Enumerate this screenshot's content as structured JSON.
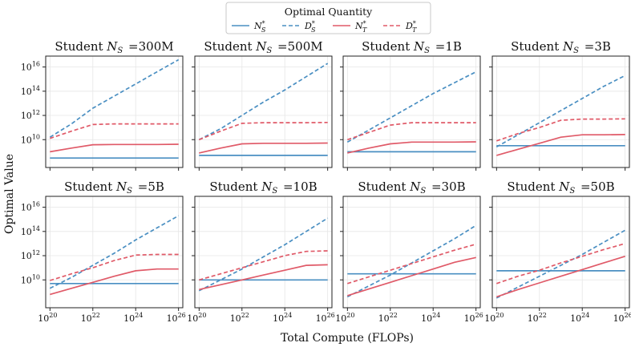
{
  "figure": {
    "legend_title": "Optimal Quantity",
    "ylabel": "Optimal Value",
    "xlabel": "Total Compute (FLOPs)"
  },
  "chart_data": {
    "type": "line",
    "x_scale": "log",
    "y_scale": "log",
    "x_range": [
      1e+20,
      1e+26
    ],
    "y_range": [
      30000000.0,
      1e+17
    ],
    "x_ticks": [
      "10^20",
      "10^22",
      "10^24",
      "10^26"
    ],
    "y_ticks": [
      "10^10",
      "10^12",
      "10^14",
      "10^16"
    ],
    "grid": true,
    "legend_position": "top-center",
    "series_styles": [
      {
        "name": "N_S^*",
        "color": "#4a8fc2",
        "dash": "solid"
      },
      {
        "name": "D_S^*",
        "color": "#4a8fc2",
        "dash": "dashed"
      },
      {
        "name": "N_T^*",
        "color": "#e05a68",
        "dash": "solid"
      },
      {
        "name": "D_T^*",
        "color": "#e05a68",
        "dash": "dashed"
      }
    ],
    "panels": [
      {
        "title_prefix": "Student",
        "title_value": "=300M",
        "x": [
          20,
          21,
          22,
          23,
          24,
          25,
          26
        ],
        "series": [
          {
            "name": "N_S^*",
            "log10_values": [
              8.48,
              8.48,
              8.48,
              8.48,
              8.48,
              8.48,
              8.48
            ]
          },
          {
            "name": "D_S^*",
            "log10_values": [
              10.2,
              11.3,
              12.6,
              13.6,
              14.6,
              15.6,
              16.6
            ]
          },
          {
            "name": "N_T^*",
            "log10_values": [
              9.0,
              9.3,
              9.58,
              9.6,
              9.6,
              9.6,
              9.62
            ]
          },
          {
            "name": "D_T^*",
            "log10_values": [
              10.1,
              10.7,
              11.25,
              11.3,
              11.3,
              11.3,
              11.3
            ]
          }
        ]
      },
      {
        "title_prefix": "Student",
        "title_value": "=500M",
        "x": [
          20,
          21,
          22,
          23,
          24,
          25,
          26
        ],
        "series": [
          {
            "name": "N_S^*",
            "log10_values": [
              8.7,
              8.7,
              8.7,
              8.7,
              8.7,
              8.7,
              8.7
            ]
          },
          {
            "name": "D_S^*",
            "log10_values": [
              10.0,
              10.9,
              12.0,
              13.1,
              14.1,
              15.2,
              16.3
            ]
          },
          {
            "name": "N_T^*",
            "log10_values": [
              8.9,
              9.3,
              9.65,
              9.7,
              9.7,
              9.7,
              9.72
            ]
          },
          {
            "name": "D_T^*",
            "log10_values": [
              10.0,
              10.7,
              11.35,
              11.4,
              11.4,
              11.4,
              11.42
            ]
          }
        ]
      },
      {
        "title_prefix": "Student",
        "title_value": "=1B",
        "x": [
          20,
          21,
          22,
          23,
          24,
          25,
          26
        ],
        "series": [
          {
            "name": "N_S^*",
            "log10_values": [
              9.0,
              9.0,
              9.0,
              9.0,
              9.0,
              9.0,
              9.0
            ]
          },
          {
            "name": "D_S^*",
            "log10_values": [
              9.8,
              10.8,
              11.8,
              12.8,
              13.8,
              14.7,
              15.6
            ]
          },
          {
            "name": "N_T^*",
            "log10_values": [
              8.9,
              9.3,
              9.65,
              9.8,
              9.8,
              9.8,
              9.82
            ]
          },
          {
            "name": "D_T^*",
            "log10_values": [
              10.0,
              10.6,
              11.2,
              11.4,
              11.4,
              11.4,
              11.4
            ]
          }
        ]
      },
      {
        "title_prefix": "Student",
        "title_value": "=3B",
        "x": [
          20,
          21,
          22,
          23,
          24,
          25,
          26
        ],
        "series": [
          {
            "name": "N_S^*",
            "log10_values": [
              9.5,
              9.5,
              9.5,
              9.5,
              9.5,
              9.5,
              9.5
            ]
          },
          {
            "name": "D_S^*",
            "log10_values": [
              9.4,
              10.4,
              11.4,
              12.4,
              13.4,
              14.4,
              15.3
            ]
          },
          {
            "name": "N_T^*",
            "log10_values": [
              8.7,
              9.2,
              9.7,
              10.2,
              10.4,
              10.4,
              10.42
            ]
          },
          {
            "name": "D_T^*",
            "log10_values": [
              9.9,
              10.5,
              11.0,
              11.6,
              11.7,
              11.7,
              11.72
            ]
          }
        ]
      },
      {
        "title_prefix": "Student",
        "title_value": "=5B",
        "x": [
          20,
          21,
          22,
          23,
          24,
          25,
          26
        ],
        "series": [
          {
            "name": "N_S^*",
            "log10_values": [
              9.7,
              9.7,
              9.7,
              9.7,
              9.7,
              9.7,
              9.7
            ]
          },
          {
            "name": "D_S^*",
            "log10_values": [
              9.3,
              10.2,
              11.2,
              12.2,
              13.3,
              14.3,
              15.3
            ]
          },
          {
            "name": "N_T^*",
            "log10_values": [
              8.8,
              9.3,
              9.8,
              10.3,
              10.75,
              10.9,
              10.9
            ]
          },
          {
            "name": "D_T^*",
            "log10_values": [
              9.95,
              10.5,
              11.0,
              11.6,
              12.05,
              12.1,
              12.1
            ]
          }
        ]
      },
      {
        "title_prefix": "Student",
        "title_value": "=10B",
        "x": [
          20,
          21,
          22,
          23,
          24,
          25,
          26
        ],
        "series": [
          {
            "name": "N_S^*",
            "log10_values": [
              10.0,
              10.0,
              10.0,
              10.0,
              10.0,
              10.0,
              10.0
            ]
          },
          {
            "name": "D_S^*",
            "log10_values": [
              9.1,
              10.0,
              10.9,
              11.9,
              12.9,
              14.0,
              15.1
            ]
          },
          {
            "name": "N_T^*",
            "log10_values": [
              9.2,
              9.6,
              10.0,
              10.4,
              10.8,
              11.2,
              11.25
            ]
          },
          {
            "name": "D_T^*",
            "log10_values": [
              10.0,
              10.5,
              11.0,
              11.5,
              12.0,
              12.35,
              12.4
            ]
          }
        ]
      },
      {
        "title_prefix": "Student",
        "title_value": "=30B",
        "x": [
          20,
          21,
          22,
          23,
          24,
          25,
          26
        ],
        "series": [
          {
            "name": "N_S^*",
            "log10_values": [
              10.5,
              10.5,
              10.5,
              10.5,
              10.5,
              10.5,
              10.5
            ]
          },
          {
            "name": "D_S^*",
            "log10_values": [
              8.6,
              9.5,
              10.4,
              11.4,
              12.4,
              13.4,
              14.5
            ]
          },
          {
            "name": "N_T^*",
            "log10_values": [
              8.7,
              9.25,
              9.8,
              10.35,
              10.9,
              11.45,
              11.85
            ]
          },
          {
            "name": "D_T^*",
            "log10_values": [
              9.7,
              10.25,
              10.8,
              11.35,
              11.9,
              12.45,
              12.95
            ]
          }
        ]
      },
      {
        "title_prefix": "Student",
        "title_value": "=50B",
        "x": [
          20,
          21,
          22,
          23,
          24,
          25,
          26
        ],
        "series": [
          {
            "name": "N_S^*",
            "log10_values": [
              10.75,
              10.75,
              10.75,
              10.75,
              10.75,
              10.75,
              10.75
            ]
          },
          {
            "name": "D_S^*",
            "log10_values": [
              8.5,
              9.4,
              10.3,
              11.2,
              12.1,
              13.1,
              14.1
            ]
          },
          {
            "name": "N_T^*",
            "log10_values": [
              8.6,
              9.2,
              9.75,
              10.3,
              10.85,
              11.4,
              11.95
            ]
          },
          {
            "name": "D_T^*",
            "log10_values": [
              9.7,
              10.3,
              10.8,
              11.4,
              11.95,
              12.5,
              13.0
            ]
          }
        ]
      }
    ]
  }
}
